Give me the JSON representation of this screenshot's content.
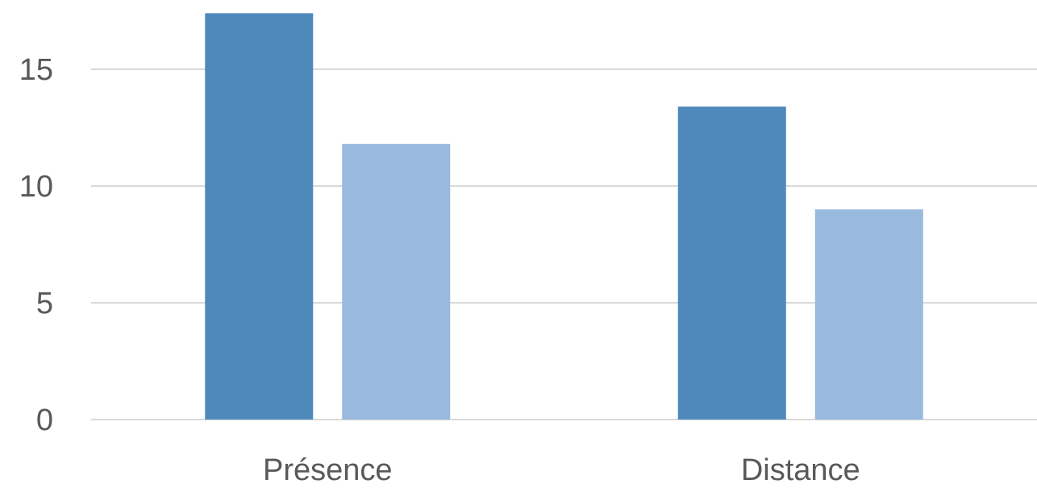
{
  "chart_data": {
    "type": "bar",
    "categories": [
      "Présence",
      "Distance"
    ],
    "series": [
      {
        "values": [
          17.4,
          13.4
        ],
        "color": "#4f89bc"
      },
      {
        "values": [
          11.8,
          9.0
        ],
        "color": "#99b9df"
      }
    ],
    "ylim": [
      0,
      17.5
    ],
    "yticks": [
      "0",
      "5",
      "10",
      "15"
    ],
    "ytick_values": [
      0,
      5,
      10,
      15
    ],
    "grid": true,
    "legend": "none"
  }
}
